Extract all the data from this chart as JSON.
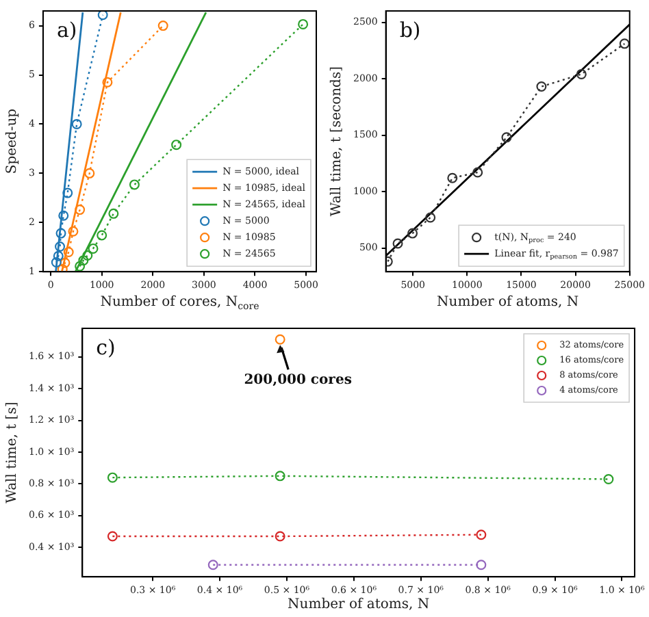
{
  "chart_data": [
    {
      "type": "line",
      "annotations": [
        "a)"
      ],
      "xlabel": "Number of cores, N$_{core}$",
      "ylabel": "Speed-up",
      "xlim": [
        -150,
        5200
      ],
      "xticks": [
        0,
        1000,
        2000,
        3000,
        4000,
        5000
      ],
      "ylim": [
        1,
        6.3
      ],
      "yticks": [
        1,
        2,
        3,
        4,
        5,
        6
      ],
      "legend": "bottom right",
      "series": [
        {
          "name": "N = 5000, ideal",
          "color": "#1f77b4",
          "x": [
            100,
            627
          ],
          "values": [
            1,
            6.27
          ],
          "marker": "none",
          "line_style": "solid"
        },
        {
          "name": "N = 10985, ideal",
          "color": "#ff7f0e",
          "x": [
            218,
            1370
          ],
          "values": [
            1,
            6.27
          ],
          "marker": "none",
          "line_style": "solid"
        },
        {
          "name": "N = 24565, ideal",
          "color": "#2ca02c",
          "x": [
            485,
            3040
          ],
          "values": [
            1,
            6.27
          ],
          "marker": "none",
          "line_style": "solid"
        },
        {
          "name": "N = 5000",
          "color": "#1f77b4",
          "x": [
            110,
            150,
            180,
            200,
            250,
            330,
            510,
            1020
          ],
          "values": [
            1.19,
            1.32,
            1.51,
            1.78,
            2.14,
            2.6,
            4.0,
            6.22
          ],
          "marker": "circle",
          "line_style": "dotted"
        },
        {
          "name": "N = 10985",
          "color": "#ff7f0e",
          "x": [
            230,
            280,
            350,
            440,
            570,
            760,
            1110,
            2200
          ],
          "values": [
            1.05,
            1.18,
            1.4,
            1.82,
            2.26,
            3.0,
            4.85,
            6.0
          ],
          "marker": "circle",
          "line_style": "dotted"
        },
        {
          "name": "N = 24565",
          "color": "#2ca02c",
          "x": [
            570,
            640,
            720,
            830,
            1000,
            1230,
            1640,
            2460,
            4940
          ],
          "values": [
            1.11,
            1.23,
            1.33,
            1.47,
            1.74,
            2.18,
            2.77,
            3.58,
            6.03
          ],
          "marker": "circle",
          "line_style": "dotted"
        }
      ]
    },
    {
      "type": "line",
      "annotations": [
        "b)"
      ],
      "xlabel": "Number of atoms, N",
      "ylabel": "Wall time, t [seconds]",
      "xlim": [
        2500,
        25000
      ],
      "xticks": [
        5000,
        10000,
        15000,
        20000,
        25000
      ],
      "ylim": [
        290,
        2600
      ],
      "yticks": [
        500,
        1000,
        1500,
        2000,
        2500
      ],
      "legend": "bottom right",
      "series": [
        {
          "name": "t(N), N$_{proc}$ = 240",
          "color": "#333333",
          "x": [
            2670,
            3600,
            4960,
            6610,
            8640,
            10970,
            13640,
            16860,
            20550,
            24530
          ],
          "values": [
            380,
            540,
            630,
            770,
            1120,
            1170,
            1480,
            1930,
            2040,
            2310
          ],
          "marker": "circle",
          "line_style": "dotted"
        },
        {
          "name": "Linear fit, r$_{pearson}$ = 0.987",
          "color": "#000000",
          "x": [
            2500,
            25000
          ],
          "values": [
            430,
            2480
          ],
          "marker": "none",
          "line_style": "solid"
        }
      ]
    },
    {
      "type": "line",
      "annotations": [
        "c)",
        {
          "text": "200,000 cores",
          "x": 490000,
          "y": 1710
        }
      ],
      "xlabel": "Number of atoms, N",
      "ylabel": "Wall time, t [s]",
      "xlim": [
        195000,
        1019000
      ],
      "xticks": [
        {
          "value": 300000,
          "label": "0.3 × 10⁶"
        },
        {
          "value": 400000,
          "label": "0.4 × 10⁶"
        },
        {
          "value": 500000,
          "label": "0.5 × 10⁶"
        },
        {
          "value": 600000,
          "label": "0.6 × 10⁶"
        },
        {
          "value": 700000,
          "label": "0.7 × 10⁶"
        },
        {
          "value": 800000,
          "label": "0.8 × 10⁶"
        },
        {
          "value": 900000,
          "label": "0.9 × 10⁶"
        },
        {
          "value": 1000000,
          "label": "1.0 × 10⁶"
        }
      ],
      "ylim": [
        215,
        1780
      ],
      "yticks": [
        {
          "value": 400,
          "label": "0.4 × 10³"
        },
        {
          "value": 600,
          "label": "0.6 × 10³"
        },
        {
          "value": 800,
          "label": "0.8 × 10³"
        },
        {
          "value": 1000,
          "label": "1.0 × 10³"
        },
        {
          "value": 1200,
          "label": "1.2 × 10³"
        },
        {
          "value": 1400,
          "label": "1.4 × 10³"
        },
        {
          "value": 1600,
          "label": "1.6 × 10³"
        }
      ],
      "legend": "top right",
      "series": [
        {
          "name": "32 atoms/core",
          "color": "#ff7f0e",
          "x": [
            490000
          ],
          "values": [
            1710
          ],
          "marker": "circle",
          "line_style": "dotted"
        },
        {
          "name": "16 atoms/core",
          "color": "#2ca02c",
          "x": [
            240000,
            490000,
            980000
          ],
          "values": [
            840,
            850,
            830
          ],
          "marker": "circle",
          "line_style": "dotted"
        },
        {
          "name": "8 atoms/core",
          "color": "#d62728",
          "x": [
            240000,
            490000,
            790000
          ],
          "values": [
            470,
            470,
            480
          ],
          "marker": "circle",
          "line_style": "dotted"
        },
        {
          "name": "4 atoms/core",
          "color": "#9467bd",
          "x": [
            390000,
            790000
          ],
          "values": [
            290,
            290
          ],
          "marker": "circle",
          "line_style": "dotted"
        }
      ]
    }
  ]
}
